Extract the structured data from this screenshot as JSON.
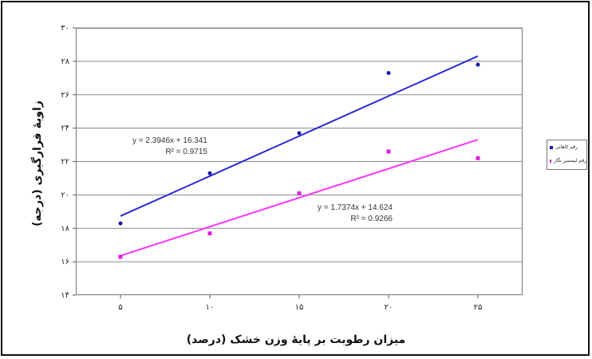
{
  "chart_data": {
    "type": "scatter",
    "title": "",
    "xlabel": "میزان رطوبت بر پایۀ وزن خشک (درصد)",
    "ylabel": "زاویۀ قرارگیری (درجه)",
    "x": [
      5,
      10,
      15,
      20,
      25
    ],
    "x_tick_labels": [
      "۵",
      "۱۰",
      "۱۵",
      "۲۰",
      "۲۵"
    ],
    "y_ticks": [
      14,
      16,
      18,
      20,
      22,
      24,
      26,
      28,
      30
    ],
    "y_tick_labels": [
      "۱۴",
      "۱۶",
      "۱۸",
      "۲۰",
      "۲۲",
      "۲۴",
      "۲۶",
      "۲۸",
      "۳۰"
    ],
    "xlim": [
      2.5,
      27.5
    ],
    "ylim": [
      14,
      30
    ],
    "grid": true,
    "legend_position": "right",
    "series": [
      {
        "name": "رقم کاهانی",
        "color": "#1a1aa8",
        "line_color": "#2a2ad6",
        "values": [
          18.3,
          21.3,
          23.7,
          27.3,
          27.8
        ],
        "trendline": {
          "slope": 2.3946,
          "intercept": 16.341
        },
        "equation": "y = 2.3946x + 16.341",
        "r2": "R² = 0.9715"
      },
      {
        "name": "رقم لیمسیر نگار",
        "color": "#e020e0",
        "line_color": "#ff33ff",
        "values": [
          16.3,
          17.7,
          20.1,
          22.6,
          22.2
        ],
        "trendline": {
          "slope": 1.7374,
          "intercept": 14.624
        },
        "equation": "y = 1.7374x + 14.624",
        "r2": "R² = 0.9266"
      }
    ]
  }
}
